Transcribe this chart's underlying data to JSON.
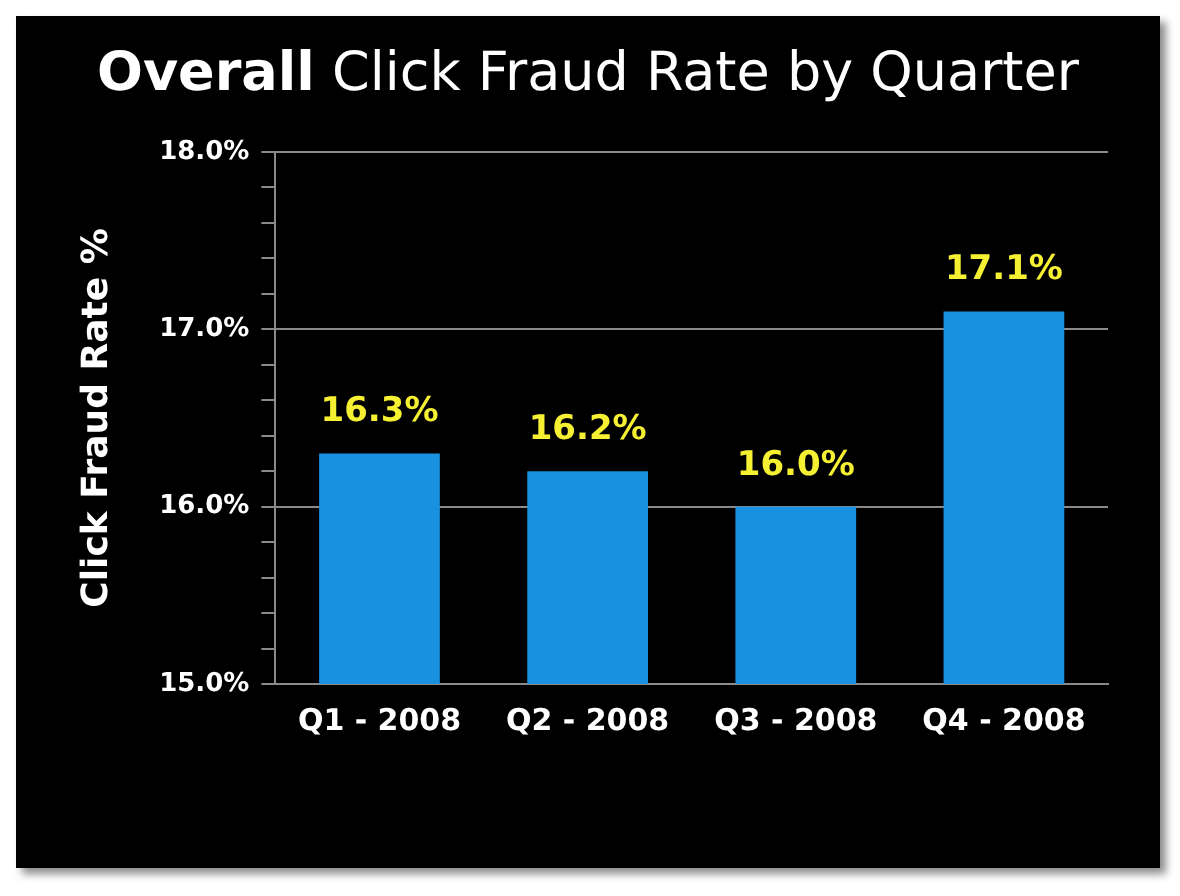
{
  "chart_data": {
    "type": "bar",
    "title": "Overall Click Fraud Rate by Quarter",
    "ylabel": "Click Fraud Rate %",
    "categories": [
      "Q1 - 2008",
      "Q2 - 2008",
      "Q3 - 2008",
      "Q4 - 2008"
    ],
    "values": [
      16.3,
      16.2,
      16.0,
      17.1
    ],
    "color": "#1a90e0",
    "value_labels": [
      "16.3%",
      "16.2%",
      "16.0%",
      "17.1%"
    ],
    "ylim": [
      15,
      18
    ],
    "yticks": [
      {
        "value": 15,
        "label": "15.0%"
      },
      {
        "value": 15.2,
        "label": null
      },
      {
        "value": 15.4,
        "label": null
      },
      {
        "value": 15.6,
        "label": null
      },
      {
        "value": 15.8,
        "label": null
      },
      {
        "value": 16,
        "label": "16.0%"
      },
      {
        "value": 16.2,
        "label": null
      },
      {
        "value": 16.4,
        "label": null
      },
      {
        "value": 16.6,
        "label": null
      },
      {
        "value": 16.8,
        "label": null
      },
      {
        "value": 17,
        "label": "17.0%"
      },
      {
        "value": 17.2,
        "label": null
      },
      {
        "value": 17.4,
        "label": null
      },
      {
        "value": 17.6,
        "label": null
      },
      {
        "value": 17.8,
        "label": null
      },
      {
        "value": 18,
        "label": "18.0%"
      }
    ],
    "grid": "y"
  }
}
